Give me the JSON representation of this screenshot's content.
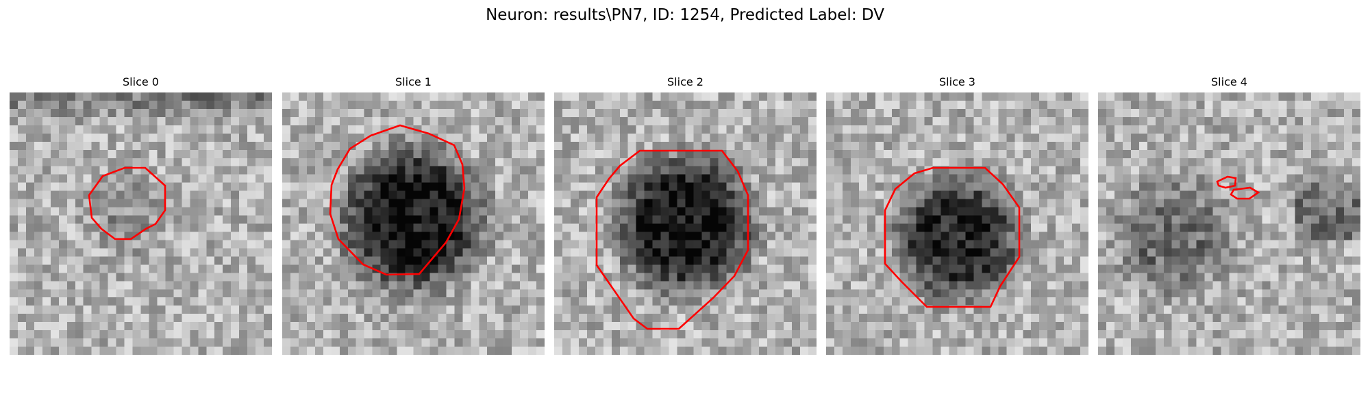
{
  "figure": {
    "title": "Neuron: results\\PN7, ID: 1254, Predicted Label: DV"
  },
  "contour_color": "#ff0000",
  "panels": [
    {
      "title": "Slice 0",
      "image": "grayscale microscopy patch with small faint round region outlined",
      "dark_center": 0.18,
      "contour_count": 1
    },
    {
      "title": "Slice 1",
      "image": "grayscale microscopy patch with large dark round neuron outlined",
      "dark_center": 0.82,
      "contour_count": 1
    },
    {
      "title": "Slice 2",
      "image": "grayscale microscopy patch with large dark round neuron outlined",
      "dark_center": 0.82,
      "contour_count": 1
    },
    {
      "title": "Slice 3",
      "image": "grayscale microscopy patch with dark round neuron outlined",
      "dark_center": 0.72,
      "contour_count": 1
    },
    {
      "title": "Slice 4",
      "image": "grayscale microscopy patch with two tiny contours",
      "dark_center": 0.35,
      "contour_count": 2
    }
  ]
}
